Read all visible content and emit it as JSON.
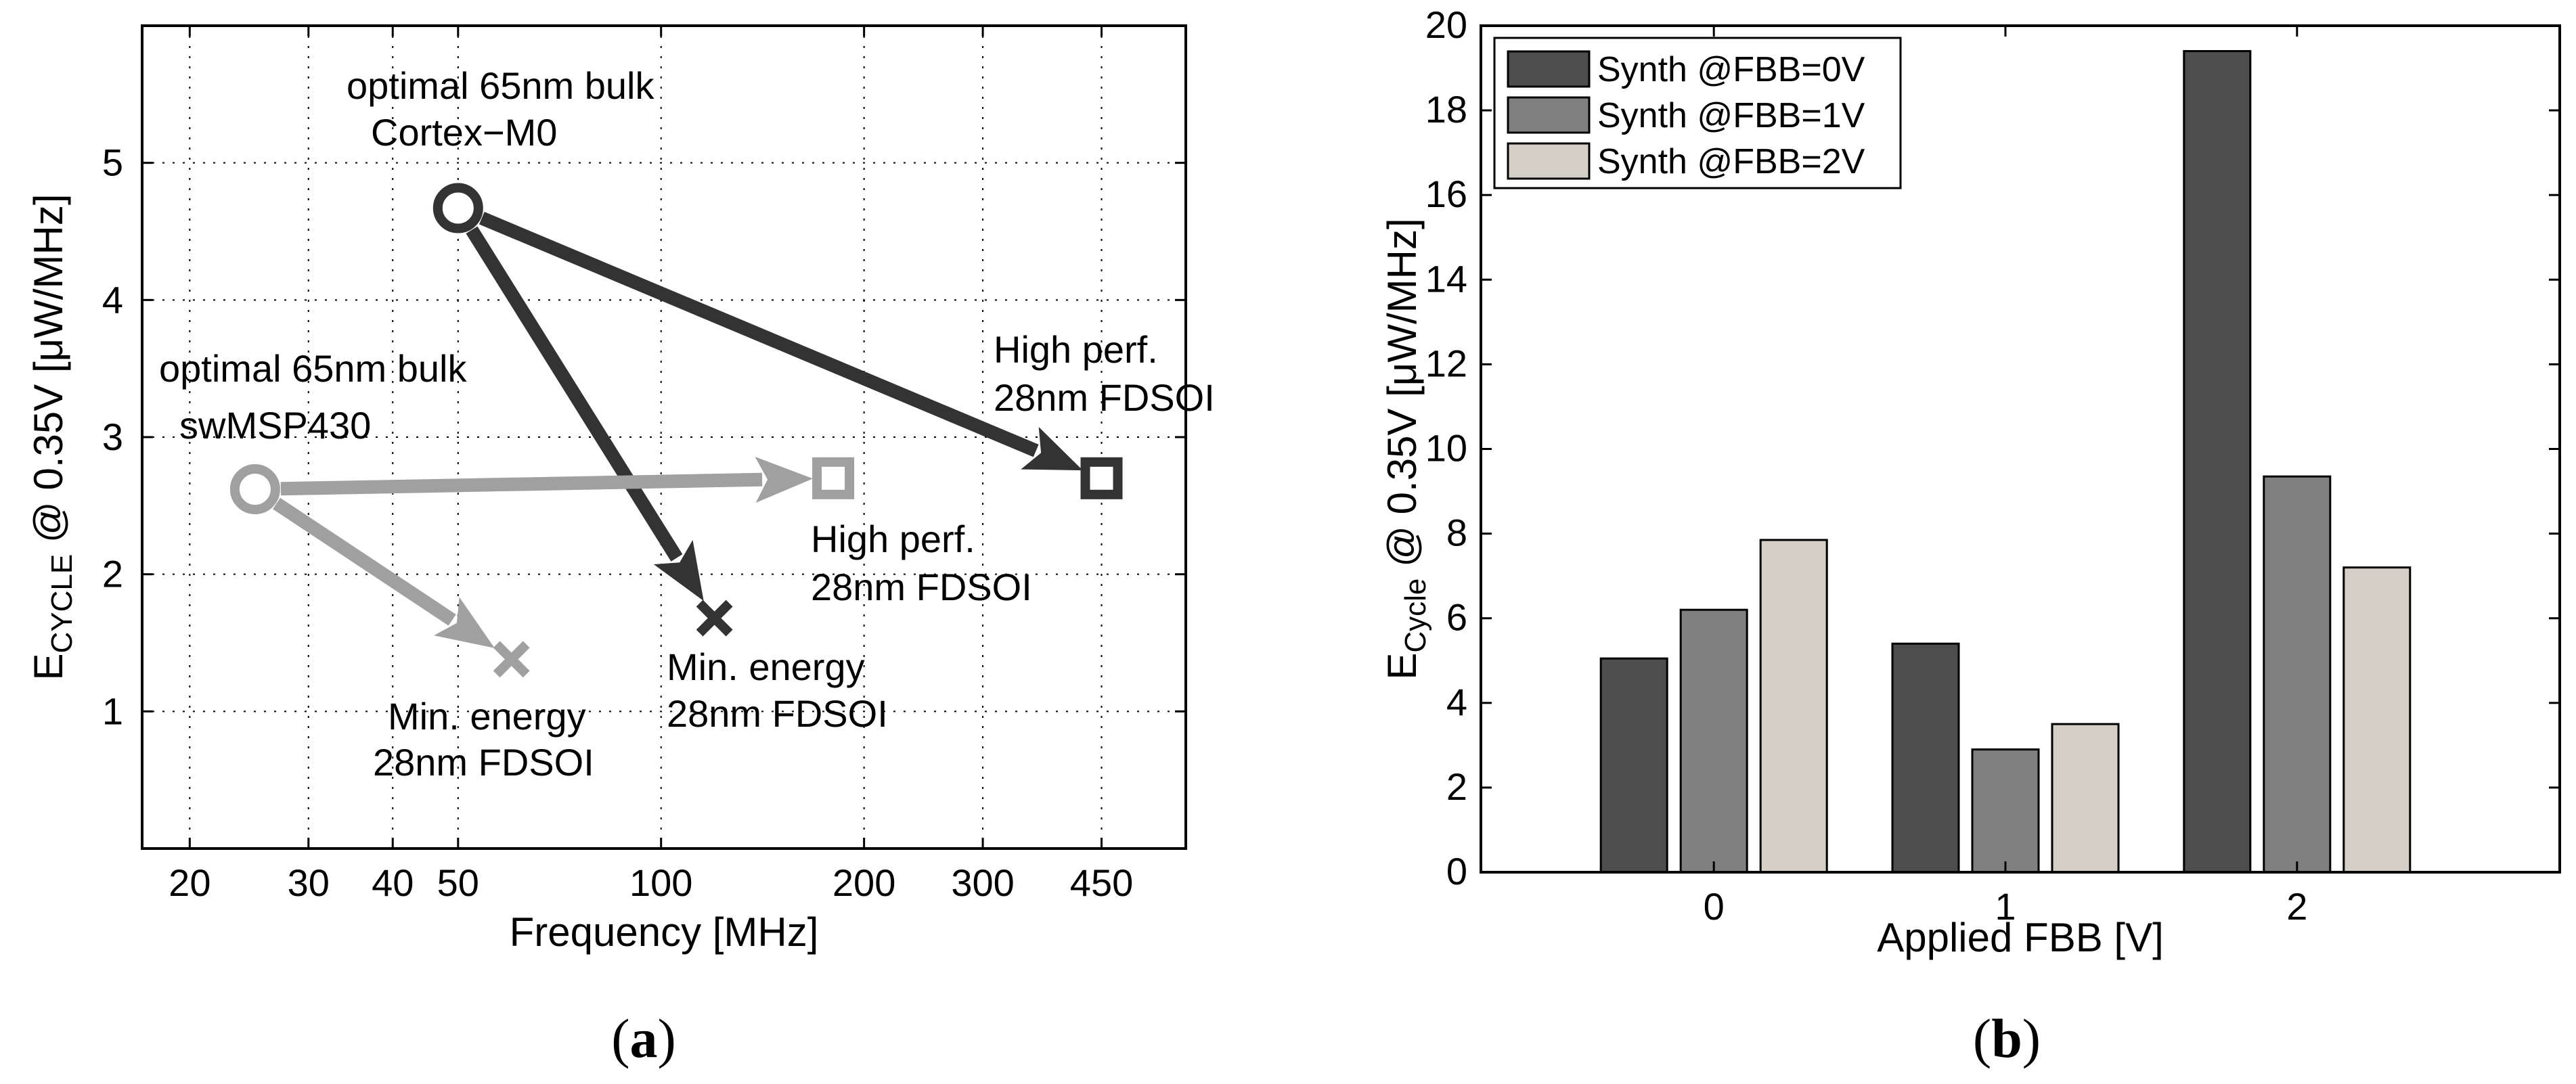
{
  "chart_data": [
    {
      "type": "scatter",
      "panel": "a",
      "xscale": "log",
      "xlabel": "Frequency [MHz]",
      "ylabel": "E_CYCLE @ 0.35V [μW/MHz]",
      "ylabel_parts": {
        "main": "E",
        "sub": "CYCLE",
        "rest": " @ 0.35V [μW/MHz]"
      },
      "xlim": [
        17,
        600
      ],
      "ylim": [
        0,
        6
      ],
      "xticks": [
        20,
        30,
        40,
        50,
        100,
        200,
        300,
        450
      ],
      "xtick_labels": [
        "20",
        "30",
        "40",
        "50",
        "100",
        "200",
        "300",
        "450"
      ],
      "yticks": [
        1,
        2,
        3,
        4,
        5
      ],
      "ytick_labels": [
        "1",
        "2",
        "3",
        "4",
        "5"
      ],
      "grid": true,
      "colors": {
        "dark": "#333333",
        "light": "#a0a0a0"
      },
      "points": [
        {
          "id": "m0-bulk",
          "x": 50,
          "y": 4.67,
          "marker": "circle",
          "color": "dark",
          "label_lines": [
            "optimal 65nm bulk",
            "Cortex−M0"
          ]
        },
        {
          "id": "m0-hp",
          "x": 450,
          "y": 2.7,
          "marker": "square",
          "color": "dark",
          "label_lines": [
            "High perf.",
            "28nm FDSOI"
          ]
        },
        {
          "id": "m0-me",
          "x": 120,
          "y": 1.68,
          "marker": "cross",
          "color": "dark",
          "label_lines": [
            "Min. energy",
            "28nm FDSOI"
          ]
        },
        {
          "id": "msp-bulk",
          "x": 25,
          "y": 2.62,
          "marker": "circle",
          "color": "light",
          "label_lines": [
            "optimal 65nm bulk",
            "swMSP430"
          ]
        },
        {
          "id": "msp-hp",
          "x": 180,
          "y": 2.7,
          "marker": "square",
          "color": "light",
          "label_lines": [
            "High perf.",
            "28nm FDSOI"
          ]
        },
        {
          "id": "msp-me",
          "x": 60,
          "y": 1.38,
          "marker": "cross",
          "color": "light",
          "label_lines": [
            "Min. energy",
            "28nm FDSOI"
          ]
        }
      ],
      "arrows": [
        {
          "from": "m0-bulk",
          "to": "m0-hp",
          "color": "dark"
        },
        {
          "from": "m0-bulk",
          "to": "m0-me",
          "color": "dark"
        },
        {
          "from": "msp-bulk",
          "to": "msp-hp",
          "color": "light"
        },
        {
          "from": "msp-bulk",
          "to": "msp-me",
          "color": "light"
        }
      ]
    },
    {
      "type": "bar",
      "panel": "b",
      "categories": [
        "0",
        "1",
        "2"
      ],
      "xlabel": "Applied FBB [V]",
      "ylabel": "E_Cycle @ 0.35V [μW/MHz]",
      "ylabel_parts": {
        "main": "E",
        "sub": "Cycle",
        "rest": " @ 0.35V [μW/MHz]"
      },
      "ylim": [
        0,
        20
      ],
      "yticks": [
        0,
        2,
        4,
        6,
        8,
        10,
        12,
        14,
        16,
        18,
        20
      ],
      "ytick_labels": [
        "0",
        "2",
        "4",
        "6",
        "8",
        "10",
        "12",
        "14",
        "16",
        "18",
        "20"
      ],
      "grid": false,
      "legend_position": "top-left",
      "series": [
        {
          "name": "Synth @FBB=0V",
          "color": "#4d4d4d",
          "values": [
            5.05,
            5.4,
            19.4
          ]
        },
        {
          "name": "Synth @FBB=1V",
          "color": "#808080",
          "values": [
            6.2,
            2.9,
            9.35
          ]
        },
        {
          "name": "Synth @FBB=2V",
          "color": "#d4d0c8",
          "values": [
            7.85,
            3.5,
            7.2
          ]
        }
      ]
    }
  ],
  "panel_labels": {
    "a": {
      "open": "(",
      "letter": "a",
      "close": ")"
    },
    "b": {
      "open": "(",
      "letter": "b",
      "close": ")"
    }
  }
}
